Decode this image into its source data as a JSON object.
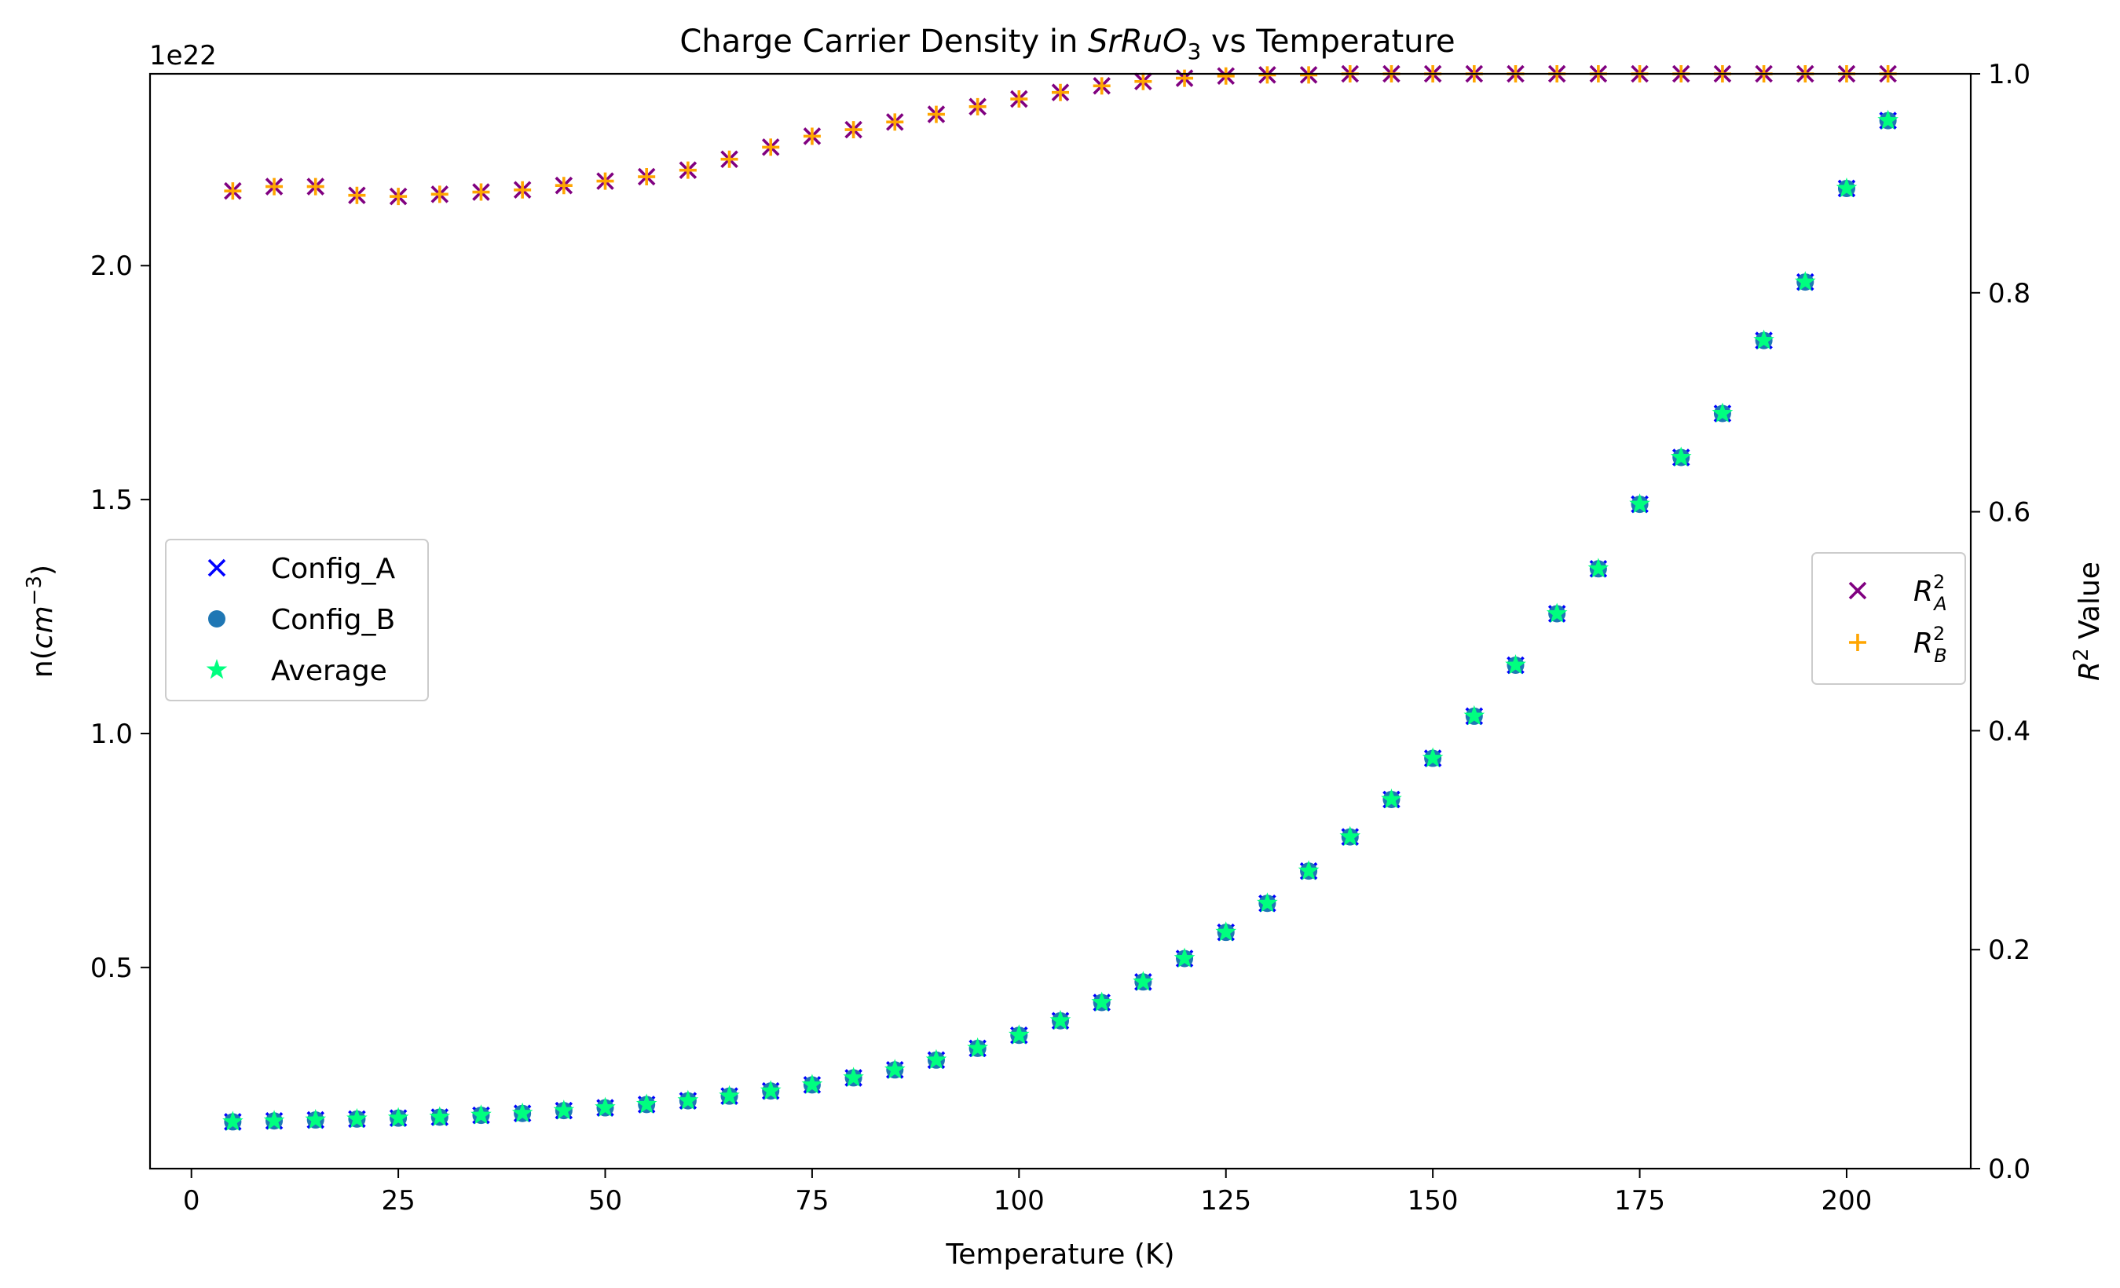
{
  "chart_data": {
    "type": "scatter",
    "title": {
      "prefix": "Charge Carrier Density in ",
      "formula": {
        "base1": "SrRu",
        "base2": "O",
        "sub": "3"
      },
      "suffix": " vs Temperature"
    },
    "xlabel": "Temperature (K)",
    "ylabel": {
      "base": "n(",
      "unit": "cm",
      "sup": "−3",
      "close": ")"
    },
    "y2label": {
      "base": "R",
      "sup": "2",
      "rest": " Value"
    },
    "y_offset_text": "1e22",
    "xlim": [
      -5,
      215
    ],
    "ylim": [
      0.07,
      2.41
    ],
    "y2lim": [
      0,
      1
    ],
    "x_ticks": [
      0,
      25,
      50,
      75,
      100,
      125,
      150,
      175,
      200
    ],
    "y_ticks": [
      0.5,
      1.0,
      1.5,
      2.0
    ],
    "y_tick_labels": [
      "0.5",
      "1.0",
      "1.5",
      "2.0"
    ],
    "y2_ticks": [
      0.0,
      0.2,
      0.4,
      0.6,
      0.8,
      1.0
    ],
    "y2_tick_labels": [
      "0.0",
      "0.2",
      "0.4",
      "0.6",
      "0.8",
      "1.0"
    ],
    "grid": false,
    "x": [
      5,
      10,
      15,
      20,
      25,
      30,
      35,
      40,
      45,
      50,
      55,
      60,
      65,
      70,
      75,
      80,
      85,
      90,
      95,
      100,
      105,
      110,
      115,
      120,
      125,
      130,
      135,
      140,
      145,
      150,
      155,
      160,
      165,
      170,
      175,
      180,
      185,
      190,
      195,
      200,
      205
    ],
    "density_values": [
      0.17,
      0.172,
      0.174,
      0.176,
      0.178,
      0.18,
      0.184,
      0.188,
      0.194,
      0.2,
      0.207,
      0.215,
      0.225,
      0.236,
      0.249,
      0.264,
      0.281,
      0.302,
      0.327,
      0.355,
      0.386,
      0.425,
      0.469,
      0.519,
      0.575,
      0.637,
      0.706,
      0.779,
      0.859,
      0.947,
      1.037,
      1.146,
      1.256,
      1.352,
      1.49,
      1.59,
      1.684,
      1.84,
      1.965,
      2.165,
      2.31
    ],
    "r2_values": [
      0.893,
      0.897,
      0.897,
      0.889,
      0.888,
      0.89,
      0.892,
      0.894,
      0.898,
      0.902,
      0.906,
      0.912,
      0.922,
      0.933,
      0.943,
      0.949,
      0.956,
      0.963,
      0.97,
      0.977,
      0.983,
      0.989,
      0.993,
      0.996,
      0.998,
      0.999,
      0.999,
      1.0,
      1.0,
      1.0,
      1.0,
      1.0,
      1.0,
      1.0,
      1.0,
      1.0,
      1.0,
      1.0,
      1.0,
      1.0,
      1.0
    ],
    "series": [
      {
        "name": "Config_A",
        "axis": "left",
        "marker": "x",
        "color": "#0000ff"
      },
      {
        "name": "Config_B",
        "axis": "left",
        "marker": "circle",
        "color": "#1f77b4"
      },
      {
        "name": "Average",
        "axis": "left",
        "marker": "star",
        "color": "#00ff7f"
      },
      {
        "name": "R_A^2",
        "axis": "right",
        "marker": "x",
        "color": "#800080"
      },
      {
        "name": "R_B^2",
        "axis": "right",
        "marker": "plus",
        "color": "#ffa500"
      }
    ],
    "legend_left": {
      "placement": "center-left",
      "items": [
        {
          "label": "Config_A",
          "marker": "x",
          "color": "#0000ff"
        },
        {
          "label": "Config_B",
          "marker": "circle",
          "color": "#1f77b4"
        },
        {
          "label": "Average",
          "marker": "star",
          "color": "#00ff7f"
        }
      ]
    },
    "legend_right": {
      "placement": "center-right",
      "items": [
        {
          "base": "R",
          "sup": "2",
          "sub": "A",
          "marker": "x",
          "color": "#800080"
        },
        {
          "base": "R",
          "sup": "2",
          "sub": "B",
          "marker": "plus",
          "color": "#ffa500"
        }
      ]
    }
  }
}
